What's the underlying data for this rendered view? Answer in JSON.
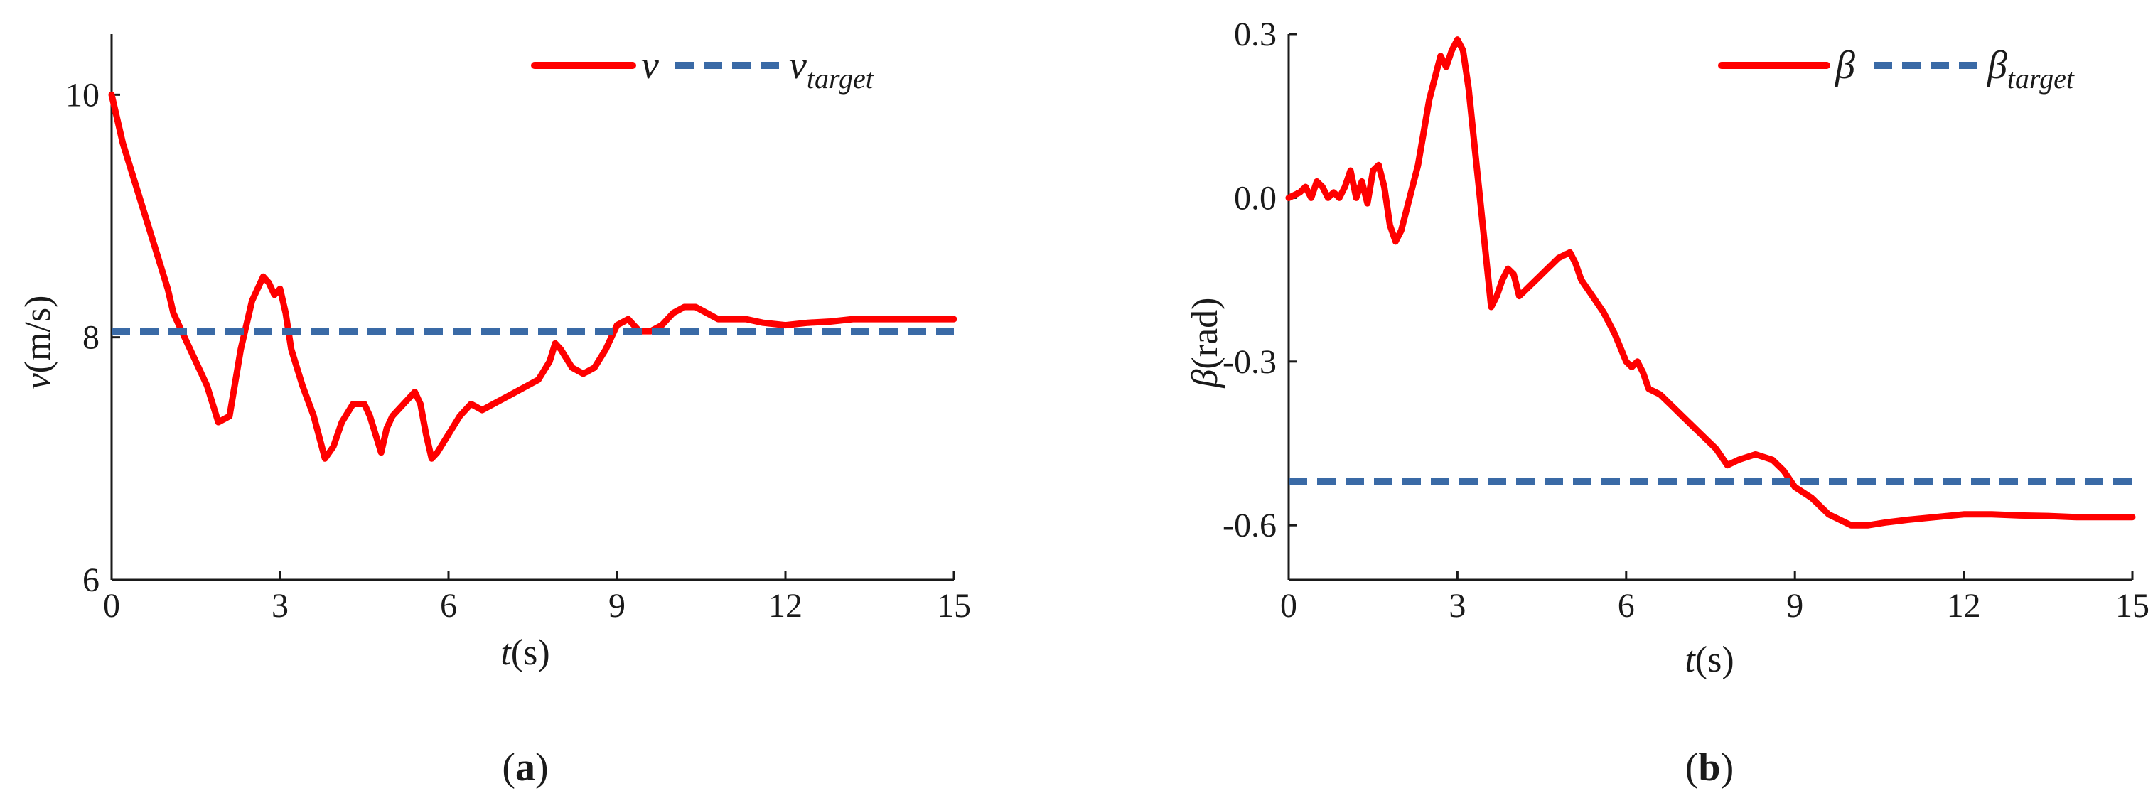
{
  "colors": {
    "measured": "#ff0000",
    "target": "#3a6aa6",
    "axis": "#1a1a1a"
  },
  "chart_data": [
    {
      "type": "line",
      "panel_label": {
        "open": "(",
        "letter": "a",
        "close": ")"
      },
      "xlabel": {
        "var": "t",
        "unit": "(s)"
      },
      "ylabel": {
        "var": "v",
        "unit": "(m/s)"
      },
      "xlim": [
        0,
        15
      ],
      "ylim": [
        6,
        10.5
      ],
      "xticks": [
        0,
        3,
        6,
        9,
        12,
        15
      ],
      "xtick_labels": [
        "0",
        "3",
        "6",
        "9",
        "12",
        "15"
      ],
      "yticks": [
        6,
        8,
        10
      ],
      "ytick_labels": [
        "6",
        "8",
        "10"
      ],
      "legend_position": "top-right",
      "series": [
        {
          "legend": {
            "main": "v",
            "sub": ""
          },
          "style": "solid",
          "x": [
            0,
            0.2,
            0.4,
            0.6,
            0.8,
            1.0,
            1.1,
            1.3,
            1.5,
            1.7,
            1.9,
            2.1,
            2.3,
            2.5,
            2.7,
            2.8,
            2.9,
            3.0,
            3.1,
            3.2,
            3.4,
            3.6,
            3.8,
            3.95,
            4.1,
            4.3,
            4.5,
            4.6,
            4.7,
            4.8,
            4.9,
            5.0,
            5.2,
            5.4,
            5.5,
            5.6,
            5.7,
            5.8,
            6.0,
            6.2,
            6.4,
            6.6,
            6.8,
            7.0,
            7.2,
            7.4,
            7.6,
            7.8,
            7.9,
            8.0,
            8.2,
            8.4,
            8.6,
            8.8,
            9.0,
            9.2,
            9.4,
            9.6,
            9.8,
            10.0,
            10.2,
            10.4,
            10.6,
            10.8,
            11.0,
            11.3,
            11.6,
            12.0,
            12.4,
            12.8,
            13.2,
            13.6,
            14.0,
            14.5,
            15.0
          ],
          "y": [
            10.0,
            9.6,
            9.3,
            9.0,
            8.7,
            8.4,
            8.2,
            8.0,
            7.8,
            7.6,
            7.3,
            7.35,
            7.9,
            8.3,
            8.5,
            8.45,
            8.35,
            8.4,
            8.2,
            7.9,
            7.6,
            7.35,
            7.0,
            7.1,
            7.3,
            7.45,
            7.45,
            7.35,
            7.2,
            7.05,
            7.25,
            7.35,
            7.45,
            7.55,
            7.45,
            7.2,
            7.0,
            7.05,
            7.2,
            7.35,
            7.45,
            7.4,
            7.45,
            7.5,
            7.55,
            7.6,
            7.65,
            7.8,
            7.95,
            7.9,
            7.75,
            7.7,
            7.75,
            7.9,
            8.1,
            8.15,
            8.05,
            8.05,
            8.1,
            8.2,
            8.25,
            8.25,
            8.2,
            8.15,
            8.15,
            8.15,
            8.12,
            8.1,
            8.12,
            8.13,
            8.15,
            8.15,
            8.15,
            8.15,
            8.15
          ]
        },
        {
          "legend": {
            "main": "v",
            "sub": "target"
          },
          "style": "dashed",
          "x": [
            0,
            15
          ],
          "y": [
            8.05,
            8.05
          ]
        }
      ]
    },
    {
      "type": "line",
      "panel_label": {
        "open": "(",
        "letter": "b",
        "close": ")"
      },
      "xlabel": {
        "var": "t",
        "unit": "(s)"
      },
      "ylabel": {
        "var": "β",
        "unit": "(rad)"
      },
      "xlim": [
        0,
        15
      ],
      "ylim": [
        -0.7,
        0.3
      ],
      "xticks": [
        0,
        3,
        6,
        9,
        12,
        15
      ],
      "xtick_labels": [
        "0",
        "3",
        "6",
        "9",
        "12",
        "15"
      ],
      "yticks": [
        -0.6,
        -0.3,
        0.0,
        0.3
      ],
      "ytick_labels": [
        "-0.6",
        "-0.3",
        "0.0",
        "0.3"
      ],
      "legend_position": "top-right",
      "series": [
        {
          "legend": {
            "main": "β",
            "sub": ""
          },
          "style": "solid",
          "x": [
            0,
            0.2,
            0.3,
            0.4,
            0.5,
            0.6,
            0.7,
            0.8,
            0.9,
            1.0,
            1.1,
            1.2,
            1.3,
            1.4,
            1.5,
            1.6,
            1.7,
            1.8,
            1.9,
            2.0,
            2.1,
            2.2,
            2.3,
            2.4,
            2.5,
            2.6,
            2.7,
            2.8,
            2.9,
            3.0,
            3.1,
            3.2,
            3.3,
            3.4,
            3.5,
            3.6,
            3.7,
            3.8,
            3.9,
            4.0,
            4.1,
            4.2,
            4.4,
            4.6,
            4.8,
            5.0,
            5.1,
            5.2,
            5.4,
            5.6,
            5.8,
            6.0,
            6.1,
            6.2,
            6.3,
            6.4,
            6.6,
            6.8,
            7.0,
            7.2,
            7.4,
            7.6,
            7.8,
            8.0,
            8.3,
            8.6,
            8.8,
            9.0,
            9.3,
            9.6,
            10.0,
            10.3,
            10.6,
            11.0,
            11.5,
            12.0,
            12.5,
            13.0,
            13.5,
            14.0,
            14.5,
            15.0
          ],
          "y": [
            0.0,
            0.01,
            0.02,
            0.0,
            0.03,
            0.02,
            0.0,
            0.01,
            0.0,
            0.02,
            0.05,
            0.0,
            0.03,
            -0.01,
            0.05,
            0.06,
            0.02,
            -0.05,
            -0.08,
            -0.06,
            -0.02,
            0.02,
            0.06,
            0.12,
            0.18,
            0.22,
            0.26,
            0.24,
            0.27,
            0.29,
            0.27,
            0.2,
            0.1,
            0.0,
            -0.1,
            -0.2,
            -0.18,
            -0.15,
            -0.13,
            -0.14,
            -0.18,
            -0.17,
            -0.15,
            -0.13,
            -0.11,
            -0.1,
            -0.12,
            -0.15,
            -0.18,
            -0.21,
            -0.25,
            -0.3,
            -0.31,
            -0.3,
            -0.32,
            -0.35,
            -0.36,
            -0.38,
            -0.4,
            -0.42,
            -0.44,
            -0.46,
            -0.49,
            -0.48,
            -0.47,
            -0.48,
            -0.5,
            -0.53,
            -0.55,
            -0.58,
            -0.6,
            -0.6,
            -0.595,
            -0.59,
            -0.585,
            -0.58,
            -0.58,
            -0.582,
            -0.583,
            -0.585,
            -0.585,
            -0.585
          ]
        },
        {
          "legend": {
            "main": "β",
            "sub": "target"
          },
          "style": "dashed",
          "x": [
            0,
            15
          ],
          "y": [
            -0.52,
            -0.52
          ]
        }
      ]
    }
  ]
}
